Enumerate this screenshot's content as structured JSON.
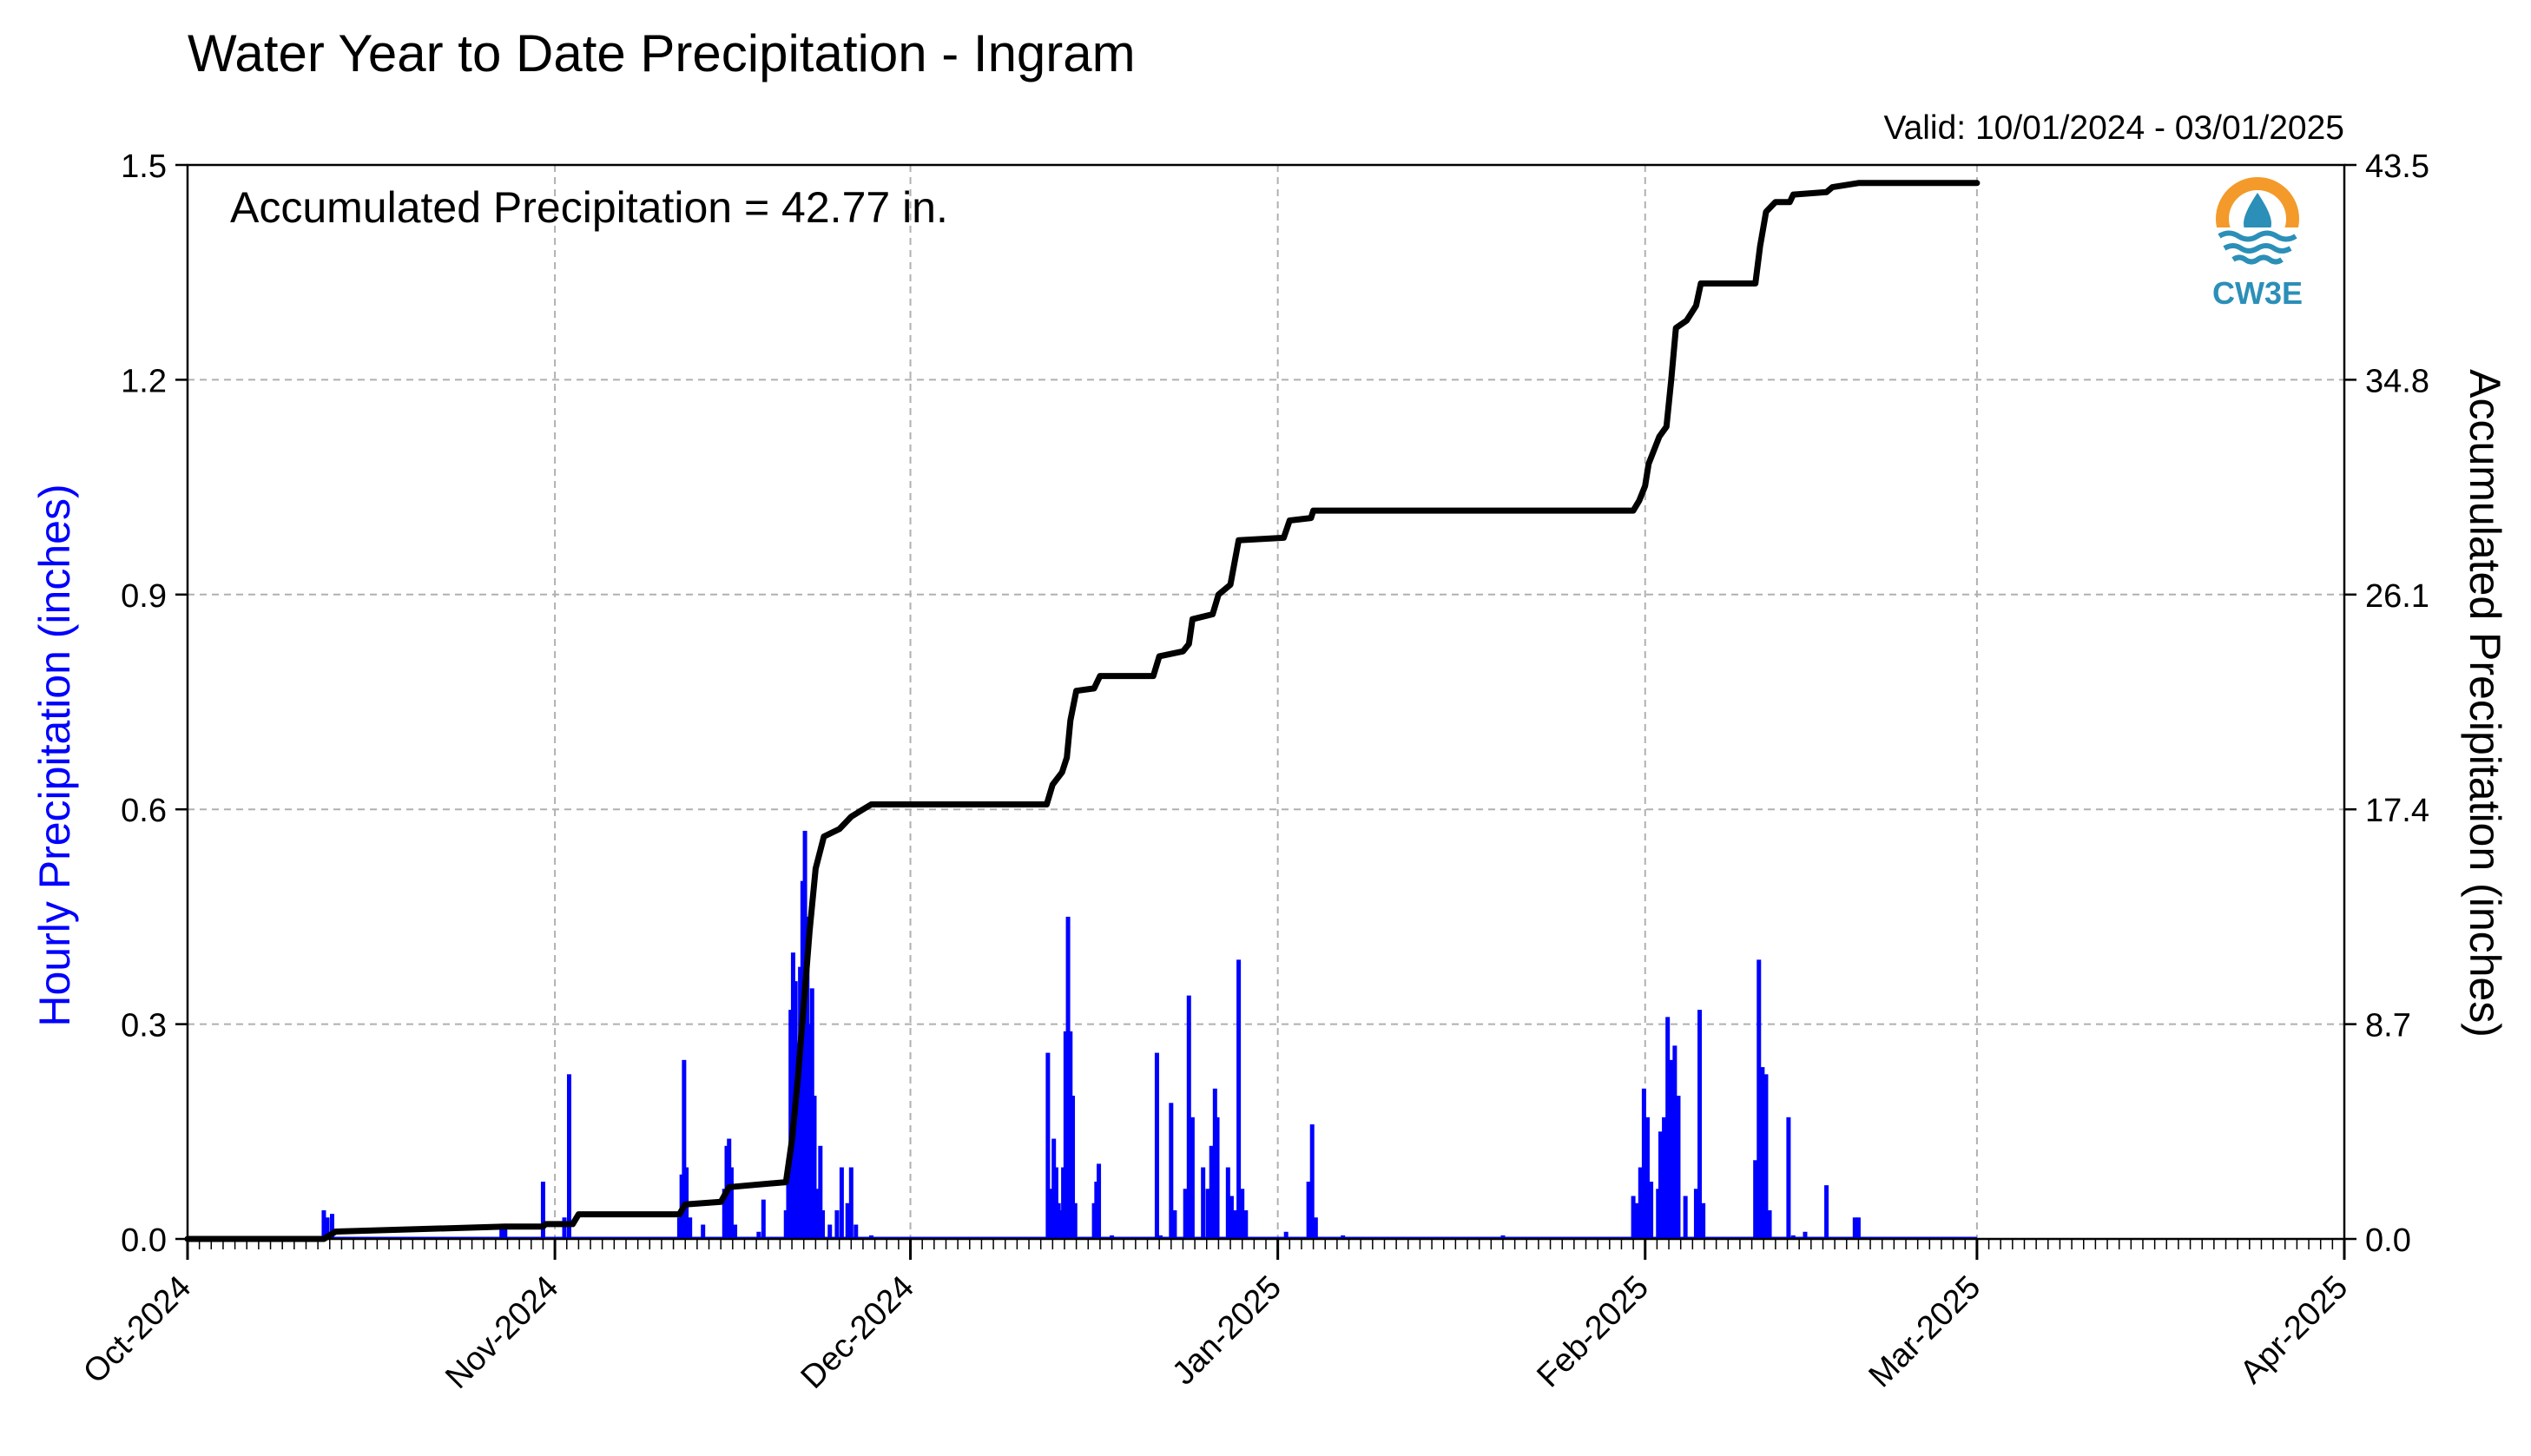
{
  "title": "Water Year to Date Precipitation - Ingram",
  "valid_text": "Valid: 10/01/2024 - 03/01/2025",
  "annotation": "Accumulated Precipitation = 42.77 in.",
  "logo_text": "CW3E",
  "colors": {
    "hourly": "#0000ff",
    "accumulated": "#000000",
    "grid": "#b0b0b0",
    "logo_orange": "#f39a2b",
    "logo_blue": "#2b8fb8"
  },
  "chart_data": {
    "type": "bar+line",
    "y_left_label": "Hourly Precipitation (inches)",
    "y_right_label": "Accumulated Precipitation (inches)",
    "ylim_left": [
      0,
      1.5
    ],
    "ylim_right": [
      0,
      43.5
    ],
    "y_left_ticks": [
      "0.0",
      "0.3",
      "0.6",
      "0.9",
      "1.2",
      "1.5"
    ],
    "y_right_ticks": [
      "0.0",
      "8.7",
      "17.4",
      "26.1",
      "34.8",
      "43.5"
    ],
    "x_range_days": [
      0,
      182
    ],
    "x_ticks": [
      {
        "day": 0,
        "label": "Oct-2024"
      },
      {
        "day": 31,
        "label": "Nov-2024"
      },
      {
        "day": 61,
        "label": "Dec-2024"
      },
      {
        "day": 92,
        "label": "Jan-2025"
      },
      {
        "day": 123,
        "label": "Feb-2025"
      },
      {
        "day": 151,
        "label": "Mar-2025"
      },
      {
        "day": 182,
        "label": "Apr-2025"
      }
    ],
    "grid": true,
    "hourly_series": {
      "name": "Hourly Precipitation (inches)",
      "points": [
        [
          11.5,
          0.04
        ],
        [
          11.8,
          0.03
        ],
        [
          12.2,
          0.035
        ],
        [
          26.5,
          0.015
        ],
        [
          26.8,
          0.02
        ],
        [
          30.0,
          0.08
        ],
        [
          31.8,
          0.03
        ],
        [
          32.2,
          0.23
        ],
        [
          41.5,
          0.03
        ],
        [
          41.7,
          0.09
        ],
        [
          41.9,
          0.25
        ],
        [
          42.1,
          0.1
        ],
        [
          42.4,
          0.03
        ],
        [
          43.5,
          0.02
        ],
        [
          45.3,
          0.07
        ],
        [
          45.5,
          0.13
        ],
        [
          45.7,
          0.14
        ],
        [
          45.9,
          0.1
        ],
        [
          46.2,
          0.02
        ],
        [
          48.2,
          0.01
        ],
        [
          48.6,
          0.055
        ],
        [
          50.5,
          0.04
        ],
        [
          50.7,
          0.1
        ],
        [
          50.9,
          0.32
        ],
        [
          51.1,
          0.4
        ],
        [
          51.3,
          0.36
        ],
        [
          51.5,
          0.25
        ],
        [
          51.7,
          0.38
        ],
        [
          51.9,
          0.5
        ],
        [
          52.1,
          0.57
        ],
        [
          52.3,
          0.45
        ],
        [
          52.5,
          0.3
        ],
        [
          52.7,
          0.35
        ],
        [
          52.9,
          0.2
        ],
        [
          53.1,
          0.07
        ],
        [
          53.4,
          0.13
        ],
        [
          53.6,
          0.04
        ],
        [
          54.2,
          0.02
        ],
        [
          54.8,
          0.04
        ],
        [
          55.2,
          0.1
        ],
        [
          55.7,
          0.05
        ],
        [
          56.0,
          0.1
        ],
        [
          56.4,
          0.02
        ],
        [
          57.7,
          0.005
        ],
        [
          72.6,
          0.26
        ],
        [
          72.8,
          0.07
        ],
        [
          73.1,
          0.14
        ],
        [
          73.3,
          0.1
        ],
        [
          73.5,
          0.05
        ],
        [
          73.7,
          0.04
        ],
        [
          73.9,
          0.1
        ],
        [
          74.1,
          0.29
        ],
        [
          74.3,
          0.45
        ],
        [
          74.5,
          0.29
        ],
        [
          74.7,
          0.2
        ],
        [
          74.9,
          0.05
        ],
        [
          76.5,
          0.05
        ],
        [
          76.7,
          0.08
        ],
        [
          76.9,
          0.105
        ],
        [
          78.0,
          0.005
        ],
        [
          81.8,
          0.26
        ],
        [
          82.1,
          0.005
        ],
        [
          83.0,
          0.19
        ],
        [
          83.3,
          0.04
        ],
        [
          84.2,
          0.07
        ],
        [
          84.5,
          0.34
        ],
        [
          84.8,
          0.17
        ],
        [
          85.7,
          0.1
        ],
        [
          86.1,
          0.07
        ],
        [
          86.4,
          0.13
        ],
        [
          86.7,
          0.21
        ],
        [
          86.9,
          0.17
        ],
        [
          87.8,
          0.1
        ],
        [
          88.1,
          0.06
        ],
        [
          88.4,
          0.04
        ],
        [
          88.7,
          0.39
        ],
        [
          89.0,
          0.07
        ],
        [
          89.3,
          0.04
        ],
        [
          92.7,
          0.01
        ],
        [
          94.6,
          0.08
        ],
        [
          94.9,
          0.16
        ],
        [
          95.2,
          0.03
        ],
        [
          97.5,
          0.005
        ],
        [
          111.0,
          0.005
        ],
        [
          122.0,
          0.06
        ],
        [
          122.3,
          0.05
        ],
        [
          122.6,
          0.1
        ],
        [
          122.9,
          0.21
        ],
        [
          123.2,
          0.17
        ],
        [
          123.5,
          0.08
        ],
        [
          124.1,
          0.07
        ],
        [
          124.3,
          0.15
        ],
        [
          124.6,
          0.17
        ],
        [
          124.9,
          0.31
        ],
        [
          125.2,
          0.25
        ],
        [
          125.5,
          0.27
        ],
        [
          125.8,
          0.2
        ],
        [
          126.4,
          0.06
        ],
        [
          127.3,
          0.07
        ],
        [
          127.6,
          0.32
        ],
        [
          127.9,
          0.05
        ],
        [
          132.3,
          0.11
        ],
        [
          132.6,
          0.39
        ],
        [
          132.9,
          0.24
        ],
        [
          133.2,
          0.23
        ],
        [
          133.5,
          0.04
        ],
        [
          135.1,
          0.17
        ],
        [
          135.5,
          0.005
        ],
        [
          136.5,
          0.01
        ],
        [
          138.3,
          0.075
        ],
        [
          140.7,
          0.03
        ],
        [
          141.0,
          0.03
        ]
      ]
    },
    "accumulated_series": {
      "name": "Accumulated Precipitation (inches)",
      "points": [
        [
          0,
          0
        ],
        [
          11.5,
          0
        ],
        [
          12.5,
          0.3
        ],
        [
          26.8,
          0.5
        ],
        [
          30,
          0.5
        ],
        [
          30.2,
          0.6
        ],
        [
          32.5,
          0.6
        ],
        [
          33,
          1.0
        ],
        [
          41.5,
          1.0
        ],
        [
          42.0,
          1.4
        ],
        [
          45.0,
          1.5
        ],
        [
          45.7,
          2.1
        ],
        [
          50.5,
          2.3
        ],
        [
          51.0,
          4.0
        ],
        [
          51.5,
          6.5
        ],
        [
          52.0,
          9.5
        ],
        [
          52.5,
          12.5
        ],
        [
          53.0,
          15.0
        ],
        [
          53.7,
          16.3
        ],
        [
          55,
          16.6
        ],
        [
          56,
          17.1
        ],
        [
          57,
          17.4
        ],
        [
          57.7,
          17.6
        ],
        [
          72.5,
          17.6
        ],
        [
          73,
          18.4
        ],
        [
          73.8,
          18.9
        ],
        [
          74.2,
          19.5
        ],
        [
          74.5,
          21.0
        ],
        [
          75,
          22.2
        ],
        [
          76.5,
          22.3
        ],
        [
          77,
          22.8
        ],
        [
          81.5,
          22.8
        ],
        [
          82,
          23.6
        ],
        [
          84,
          23.8
        ],
        [
          84.5,
          24.1
        ],
        [
          84.8,
          25.1
        ],
        [
          86.5,
          25.3
        ],
        [
          87,
          26.1
        ],
        [
          88,
          26.5
        ],
        [
          88.7,
          28.3
        ],
        [
          92.5,
          28.4
        ],
        [
          93,
          29.1
        ],
        [
          94.8,
          29.2
        ],
        [
          95,
          29.5
        ],
        [
          122,
          29.5
        ],
        [
          122.5,
          29.9
        ],
        [
          123,
          30.5
        ],
        [
          123.3,
          31.4
        ],
        [
          124.2,
          32.5
        ],
        [
          124.8,
          32.9
        ],
        [
          125.2,
          34.8
        ],
        [
          125.6,
          36.9
        ],
        [
          126.5,
          37.2
        ],
        [
          127.3,
          37.8
        ],
        [
          127.7,
          38.7
        ],
        [
          132.3,
          38.7
        ],
        [
          132.7,
          40.2
        ],
        [
          133.2,
          41.6
        ],
        [
          134,
          42.0
        ],
        [
          135.2,
          42.0
        ],
        [
          135.5,
          42.3
        ],
        [
          138.3,
          42.4
        ],
        [
          138.8,
          42.6
        ],
        [
          141,
          42.77
        ],
        [
          151,
          42.77
        ]
      ]
    }
  }
}
